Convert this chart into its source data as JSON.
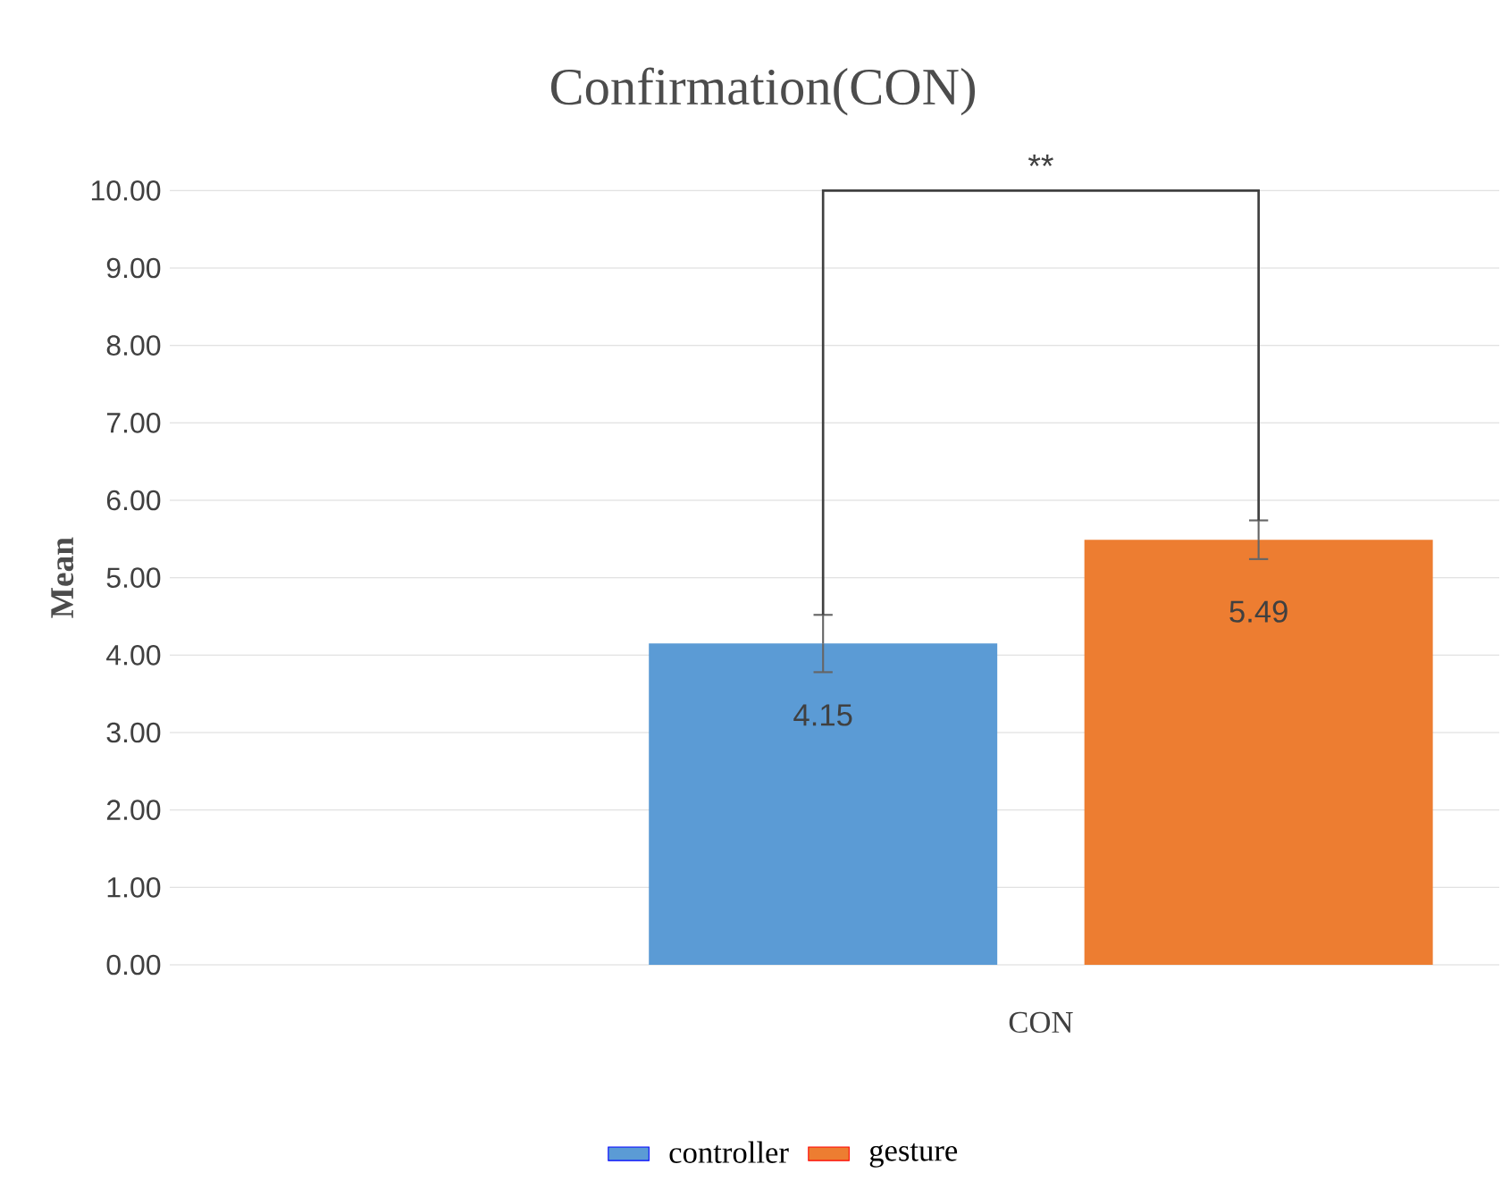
{
  "chart_data": {
    "type": "bar",
    "title": "Confirmation(CON)",
    "ylabel": "Mean",
    "categories": [
      "CON"
    ],
    "series": [
      {
        "name": "controller",
        "color": "#5b9bd5",
        "values": [
          4.15
        ],
        "errors": [
          0.37
        ]
      },
      {
        "name": "gesture",
        "color": "#ed7d31",
        "values": [
          5.49
        ],
        "errors": [
          0.25
        ]
      }
    ],
    "ylim": [
      0,
      10
    ],
    "yticks": [
      {
        "value": 0,
        "label": "0.00"
      },
      {
        "value": 1,
        "label": "1.00"
      },
      {
        "value": 2,
        "label": "2.00"
      },
      {
        "value": 3,
        "label": "3.00"
      },
      {
        "value": 4,
        "label": "4.00"
      },
      {
        "value": 5,
        "label": "5.00"
      },
      {
        "value": 6,
        "label": "6.00"
      },
      {
        "value": 7,
        "label": "7.00"
      },
      {
        "value": 8,
        "label": "8.00"
      },
      {
        "value": 9,
        "label": "9.00"
      },
      {
        "value": 10,
        "label": "10.00"
      }
    ],
    "grid": "y",
    "legend": "bottom",
    "data_labels": true,
    "annotations": [
      "**"
    ]
  }
}
